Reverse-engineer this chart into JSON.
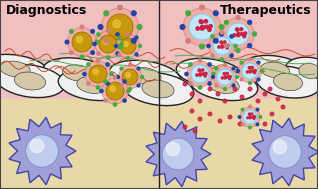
{
  "title_left": "Diagnostics",
  "title_right": "Therapeutics",
  "bg_pink": "#f0c0c0",
  "bg_tan": "#e8d8a8",
  "cell_color": "#f0f0f0",
  "cell_outline": "#222222",
  "cell_nucleus_color": "#d4c8a8",
  "immune_body_color": "#a0a0d8",
  "immune_outline_color": "#4444aa",
  "immune_nucleus_color": "#7788cc",
  "immune_highlight_color": "#c0ccee",
  "gold_core": "#c8980c",
  "gold_shine": "#f0cc44",
  "shell_pink": "#f0a8a0",
  "shell_outline": "#d08080",
  "cyan_core": "#88ccee",
  "cyan_fill": "#c0e8f8",
  "drug_dot_color": "#cc2244",
  "ligand_green": "#44aa44",
  "ligand_blue": "#2244aa",
  "ligand_red": "#cc4422",
  "wavy_red": "#cc4422",
  "ecm_green": "#55aa55",
  "divider_color": "#222222",
  "title_fontsize": 9,
  "fig_width": 3.18,
  "fig_height": 1.89,
  "dpi": 100
}
